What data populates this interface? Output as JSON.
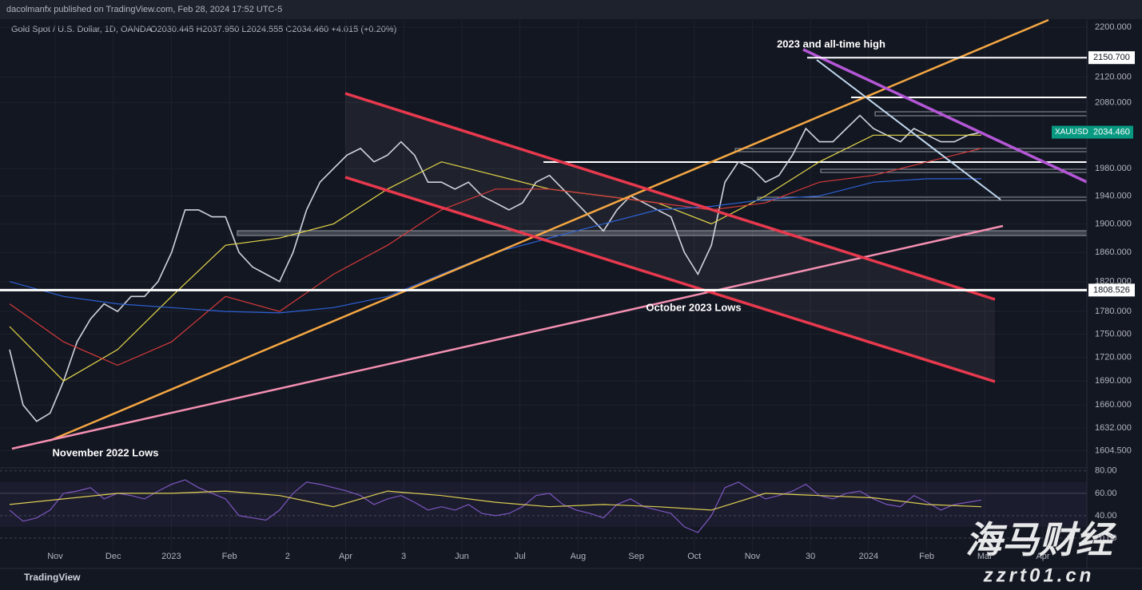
{
  "header": {
    "publisher": "dacolmanfx published on TradingView.com, Feb 28, 2024 17:52 UTC-5",
    "brand": "TradingView",
    "watermark": "海马财经",
    "watermark_url": "zzrt01.cn"
  },
  "chart_data": {
    "type": "line",
    "log_scale": true,
    "grid": true,
    "title": "Gold Spot / U.S. Dollar, 1D, OANDA",
    "ohlc": "O2030.445 H2037.950 L2024.555 C2034.460 +4.015 (+0.20%)",
    "annotations": [
      "2023 and all-time high",
      "October 2023 Lows",
      "November 2022 Lows"
    ],
    "x_labels": [
      "Nov",
      "Dec",
      "2023",
      "Feb",
      "2",
      "Apr",
      "3",
      "Jun",
      "Jul",
      "Aug",
      "Sep",
      "Oct",
      "Nov",
      "30",
      "2024",
      "Feb",
      "Mar",
      "Apr"
    ],
    "ylim": [
      1585,
      2212
    ],
    "yticks": [
      {
        "value": 2200,
        "label": "2200.000"
      },
      {
        "value": 2120,
        "label": "2120.000"
      },
      {
        "value": 2080,
        "label": "2080.000"
      },
      {
        "value": 1980,
        "label": "1980.000"
      },
      {
        "value": 1940,
        "label": "1940.000"
      },
      {
        "value": 1900,
        "label": "1900.000"
      },
      {
        "value": 1860,
        "label": "1860.000"
      },
      {
        "value": 1820,
        "label": "1820.000"
      },
      {
        "value": 1780,
        "label": "1780.000"
      },
      {
        "value": 1750,
        "label": "1750.000"
      },
      {
        "value": 1720,
        "label": "1720.000"
      },
      {
        "value": 1690,
        "label": "1690.000"
      },
      {
        "value": 1660,
        "label": "1660.000"
      },
      {
        "value": 1632,
        "label": "1632.000"
      },
      {
        "value": 1604.5,
        "label": "1604.500"
      }
    ],
    "levels": [
      {
        "value": 2150.7,
        "label": "2150.700"
      },
      1808.526
    ],
    "last_price": {
      "name": "XAUUSD",
      "value": 2034.46,
      "label": "2034.460"
    },
    "series": [
      {
        "name": "XAUUSD",
        "color": "#d1d4dc",
        "values": [
          1730,
          1660,
          1640,
          1650,
          1690,
          1740,
          1770,
          1790,
          1780,
          1800,
          1800,
          1820,
          1860,
          1920,
          1920,
          1910,
          1910,
          1860,
          1840,
          1830,
          1820,
          1860,
          1920,
          1960,
          1980,
          2000,
          2010,
          1990,
          2000,
          2020,
          2000,
          1960,
          1960,
          1950,
          1960,
          1940,
          1930,
          1920,
          1930,
          1960,
          1970,
          1950,
          1930,
          1910,
          1890,
          1920,
          1940,
          1930,
          1920,
          1910,
          1860,
          1830,
          1870,
          1960,
          1990,
          1980,
          1960,
          1970,
          2000,
          2040,
          2020,
          2020,
          2040,
          2060,
          2040,
          2030,
          2020,
          2040,
          2030,
          2020,
          2020,
          2030,
          2034.46
        ]
      },
      {
        "name": "MA50",
        "color": "#e6d84a",
        "values": [
          1760,
          1690,
          1730,
          1800,
          1870,
          1880,
          1900,
          1950,
          1990,
          1970,
          1950,
          1940,
          1930,
          1900,
          1940,
          1990,
          2030,
          2030,
          2030
        ]
      },
      {
        "name": "MA100",
        "color": "#d63a3a",
        "values": [
          1790,
          1740,
          1710,
          1740,
          1800,
          1780,
          1830,
          1870,
          1920,
          1950,
          1950,
          1940,
          1930,
          1920,
          1930,
          1960,
          1970,
          1990,
          2010
        ]
      },
      {
        "name": "MA200",
        "color": "#2d62d6",
        "values": [
          1820,
          1800,
          1790,
          1785,
          1780,
          1778,
          1785,
          1800,
          1830,
          1860,
          1880,
          1900,
          1920,
          1925,
          1935,
          1940,
          1960,
          1965,
          1965
        ]
      }
    ],
    "rsi": {
      "ylim": [
        10,
        82
      ],
      "yticks": [
        {
          "value": 80,
          "label": "80.00"
        },
        {
          "value": 60,
          "label": "60.00"
        },
        {
          "value": 40,
          "label": "40.00"
        },
        {
          "value": 20,
          "label": "20.00"
        }
      ],
      "series": [
        {
          "name": "RSI",
          "color": "#7e57c2",
          "values": [
            45,
            35,
            38,
            45,
            60,
            62,
            65,
            55,
            60,
            58,
            55,
            62,
            68,
            72,
            65,
            60,
            55,
            40,
            38,
            36,
            45,
            60,
            70,
            68,
            65,
            62,
            58,
            50,
            55,
            58,
            52,
            45,
            48,
            45,
            50,
            42,
            40,
            42,
            48,
            58,
            60,
            50,
            45,
            42,
            38,
            50,
            55,
            48,
            45,
            42,
            30,
            25,
            40,
            65,
            70,
            62,
            55,
            58,
            62,
            68,
            58,
            55,
            60,
            62,
            55,
            50,
            48,
            58,
            52,
            45,
            50,
            52,
            54
          ]
        },
        {
          "name": "RSI MA",
          "color": "#e6d84a",
          "values": [
            50,
            55,
            60,
            60,
            62,
            58,
            48,
            62,
            58,
            52,
            48,
            50,
            48,
            45,
            60,
            58,
            56,
            50,
            48
          ]
        }
      ]
    }
  }
}
